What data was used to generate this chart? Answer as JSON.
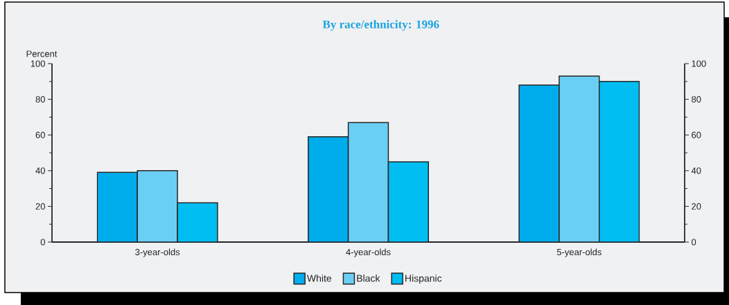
{
  "chart_data": {
    "type": "bar",
    "title": "By race/ethnicity:  1996",
    "ylabel": "Percent",
    "categories": [
      "3-year-olds",
      "4-year-olds",
      "5-year-olds"
    ],
    "series": [
      {
        "name": "White",
        "color": "#00adec",
        "values": [
          39,
          59,
          88
        ]
      },
      {
        "name": "Black",
        "color": "#6bcff5",
        "values": [
          40,
          67,
          93
        ]
      },
      {
        "name": "Hispanic",
        "color": "#00bdf2",
        "values": [
          22,
          45,
          90
        ]
      }
    ],
    "ylim": [
      0,
      100
    ],
    "yticks": [
      0,
      20,
      40,
      60,
      80,
      100
    ],
    "y2lim": [
      0,
      100
    ],
    "y2ticks": [
      0,
      20,
      40,
      60,
      80,
      100
    ],
    "legend": "bottom"
  }
}
